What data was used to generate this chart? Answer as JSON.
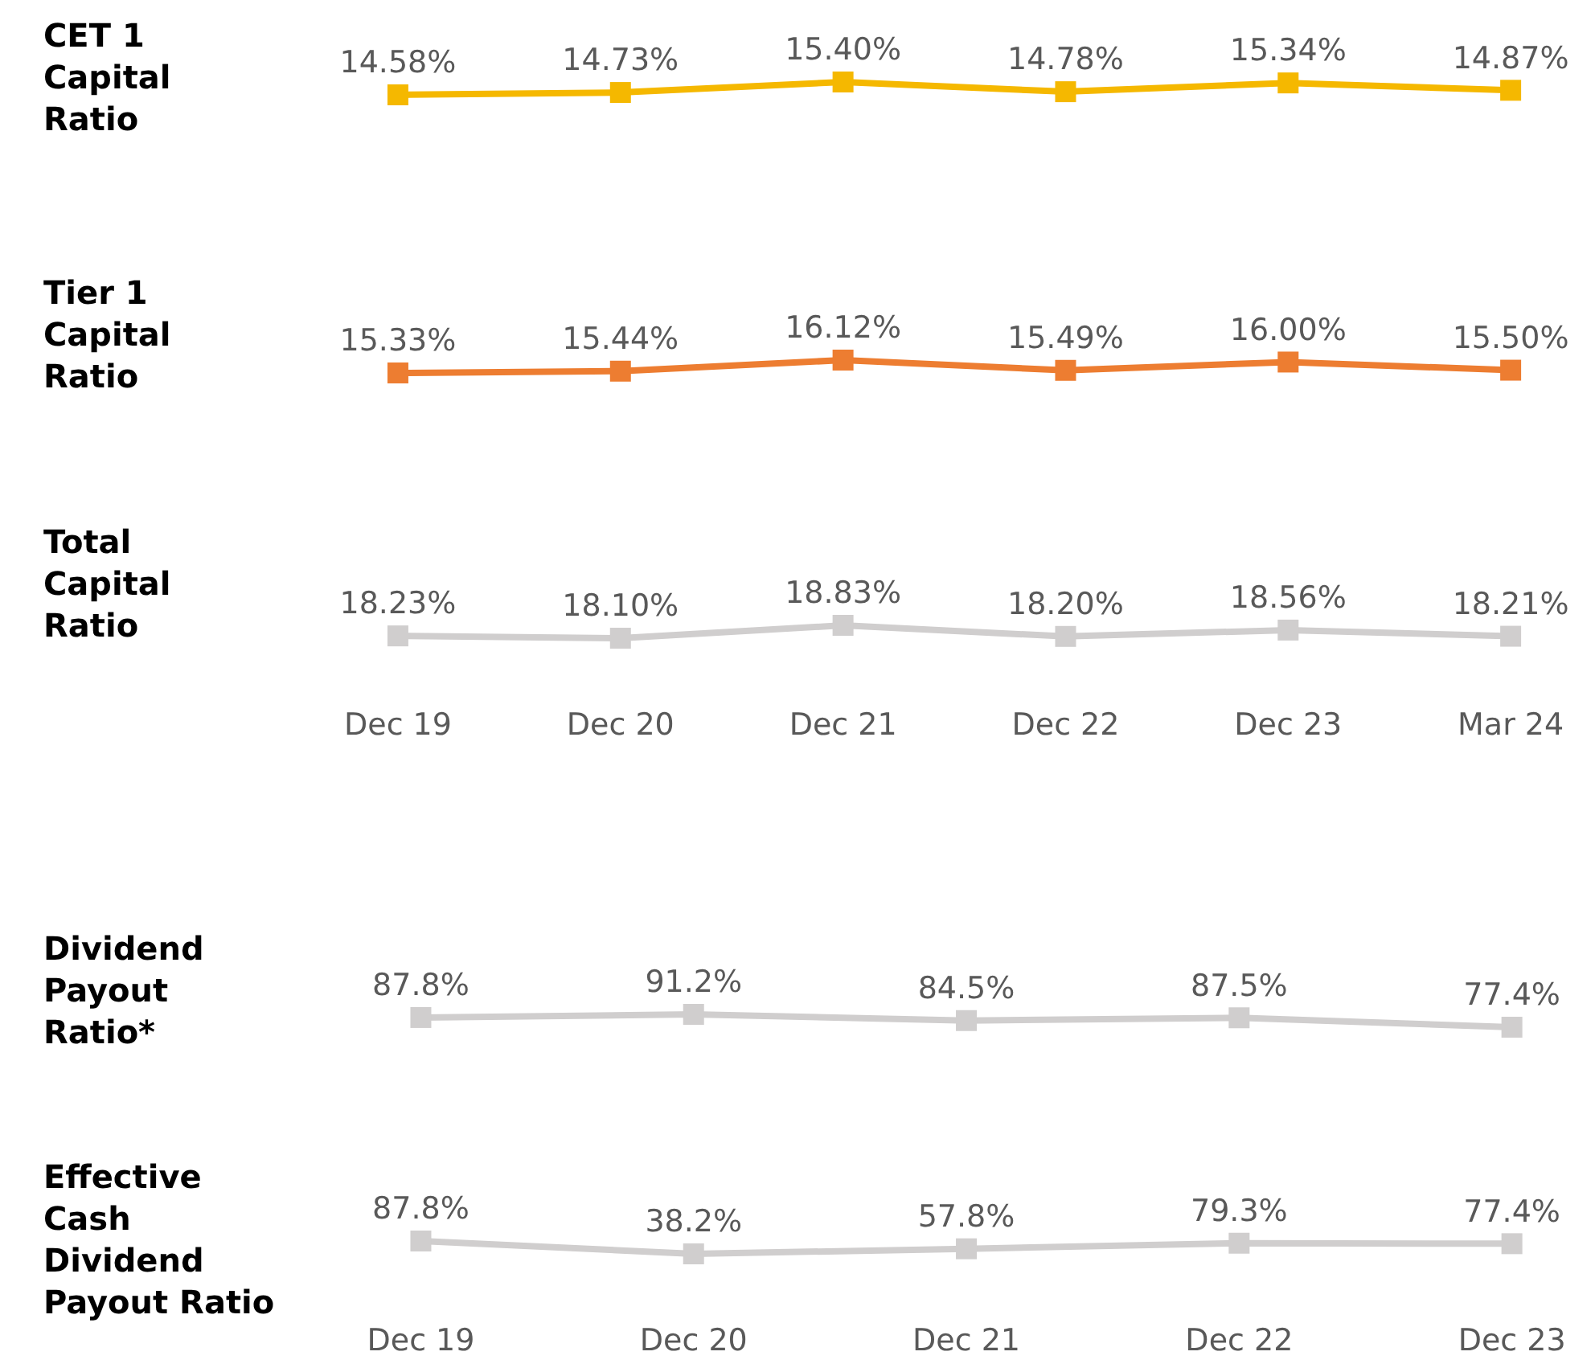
{
  "chart_data": [
    {
      "type": "line",
      "title": "CET 1 Capital Ratio",
      "categories": [
        "Dec 19",
        "Dec 20",
        "Dec 21",
        "Dec 22",
        "Dec 23",
        "Mar 24"
      ],
      "values": [
        14.58,
        14.73,
        15.4,
        14.78,
        15.34,
        14.87
      ],
      "value_labels": [
        "14.58%",
        "14.73%",
        "15.40%",
        "14.78%",
        "15.34%",
        "14.87%"
      ],
      "color": "#f5b800",
      "marker": "square",
      "tick_labels": false
    },
    {
      "type": "line",
      "title": "Tier 1 Capital Ratio",
      "categories": [
        "Dec 19",
        "Dec 20",
        "Dec 21",
        "Dec 22",
        "Dec 23",
        "Mar 24"
      ],
      "values": [
        15.33,
        15.44,
        16.12,
        15.49,
        16.0,
        15.5
      ],
      "value_labels": [
        "15.33%",
        "15.44%",
        "16.12%",
        "15.49%",
        "16.00%",
        "15.50%"
      ],
      "color": "#ed7d31",
      "marker": "square",
      "tick_labels": false
    },
    {
      "type": "line",
      "title": "Total Capital Ratio",
      "categories": [
        "Dec 19",
        "Dec 20",
        "Dec 21",
        "Dec 22",
        "Dec 23",
        "Mar 24"
      ],
      "values": [
        18.23,
        18.1,
        18.83,
        18.2,
        18.56,
        18.21
      ],
      "value_labels": [
        "18.23%",
        "18.10%",
        "18.83%",
        "18.20%",
        "18.56%",
        "18.21%"
      ],
      "color": "#d0cece",
      "marker": "square",
      "tick_labels": "x"
    },
    {
      "type": "line",
      "title": "Dividend Payout Ratio*",
      "categories": [
        "Dec 19",
        "Dec 20",
        "Dec 21",
        "Dec 22",
        "Dec 23"
      ],
      "values": [
        87.8,
        91.2,
        84.5,
        87.5,
        77.4
      ],
      "value_labels": [
        "87.8%",
        "91.2%",
        "84.5%",
        "87.5%",
        "77.4%"
      ],
      "color": "#d0cece",
      "marker": "square",
      "tick_labels": false
    },
    {
      "type": "line",
      "title": "Effective Cash Dividend Payout Ratio",
      "categories": [
        "Dec 19",
        "Dec 20",
        "Dec 21",
        "Dec 22",
        "Dec 23"
      ],
      "values": [
        87.8,
        38.2,
        57.8,
        79.3,
        77.4
      ],
      "value_labels": [
        "87.8%",
        "38.2%",
        "57.8%",
        "79.3%",
        "77.4%"
      ],
      "color": "#d0cece",
      "marker": "square",
      "tick_labels": "x"
    }
  ]
}
